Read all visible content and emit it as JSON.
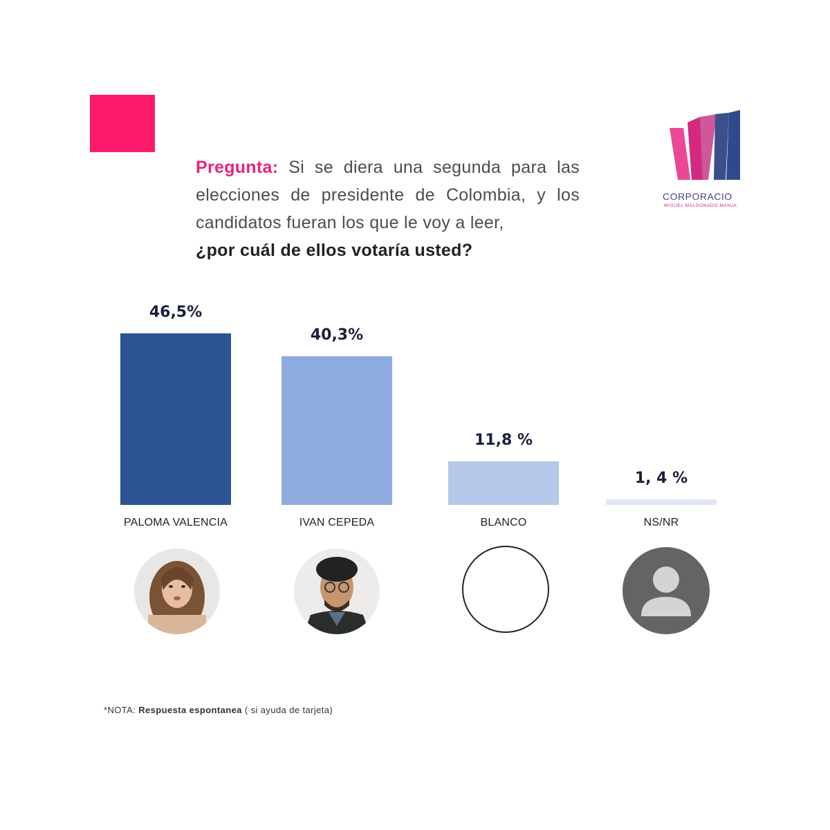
{
  "question": {
    "label": "Pregunta:",
    "text": "Si se diera una segunda para las elecciones de presidente de Colombia, y los candidatos fueran los que le voy a leer,",
    "emphasis": "¿por cuál de ellos votaría usted?"
  },
  "logo": {
    "name": "CORPORACIO",
    "subtitle": "MIGUEL MALDONADO MANJA",
    "colors": {
      "pink": "#e8348a",
      "navy": "#2f4a8a"
    }
  },
  "colors": {
    "accent_square": "#fb1a6b",
    "question_label": "#e8237b"
  },
  "chart_data": {
    "type": "bar",
    "categories": [
      "PALOMA VALENCIA",
      "IVAN CEPEDA",
      "BLANCO",
      "NS/NR"
    ],
    "values": [
      46.5,
      40.3,
      11.8,
      1.4
    ],
    "value_labels": [
      "46,5%",
      "40,3%",
      "11,8 %",
      "1, 4 %"
    ],
    "colors": [
      "#2c5394",
      "#8eabdf",
      "#b6c8ea",
      "#dfe5f4"
    ],
    "ylim": [
      0,
      50
    ],
    "grid": false,
    "legend": "none"
  },
  "avatars": [
    {
      "name": "photo-paloma-valencia",
      "kind": "photo-woman"
    },
    {
      "name": "photo-ivan-cepeda",
      "kind": "photo-man"
    },
    {
      "name": "blank-circle",
      "kind": "empty"
    },
    {
      "name": "user-icon",
      "kind": "placeholder"
    }
  ],
  "note": {
    "prefix": "*NOTA:",
    "bold": "Respuesta espontanea",
    "suffix": "( si ayuda de tarjeta)"
  }
}
